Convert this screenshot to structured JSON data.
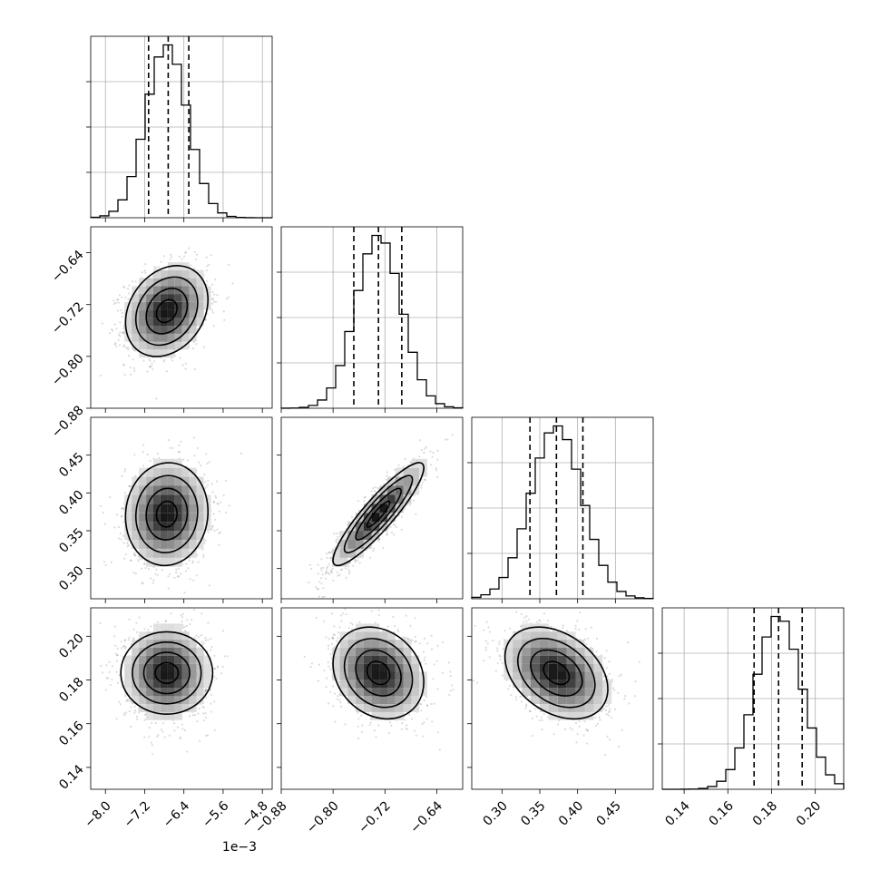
{
  "chart_data": {
    "type": "corner",
    "parameters": [
      {
        "ticks": [
          -0.008,
          -0.0072,
          -0.0064,
          -0.0056,
          -0.0048
        ],
        "tick_labels": [
          "−8.0",
          "−7.2",
          "−6.4",
          "−5.6",
          "−4.8"
        ],
        "offset_label": "1e−3",
        "range": [
          -0.0083,
          -0.0046
        ],
        "mean": -0.00675,
        "sd": 0.00042,
        "quantiles": [
          -0.00712,
          -0.00672,
          -0.0063
        ]
      },
      {
        "ticks": [
          -0.88,
          -0.8,
          -0.72,
          -0.64
        ],
        "tick_labels": [
          "−0.88",
          "−0.80",
          "−0.72",
          "−0.64"
        ],
        "range": [
          -0.88,
          -0.6
        ],
        "mean": -0.73,
        "sd": 0.035,
        "quantiles": [
          -0.768,
          -0.73,
          -0.694
        ]
      },
      {
        "ticks": [
          0.3,
          0.35,
          0.4,
          0.45
        ],
        "tick_labels": [
          "0.30",
          "0.35",
          "0.40",
          "0.45"
        ],
        "range": [
          0.26,
          0.5
        ],
        "mean": 0.372,
        "sd": 0.034,
        "quantiles": [
          0.337,
          0.372,
          0.407
        ]
      },
      {
        "ticks": [
          0.14,
          0.16,
          0.18,
          0.2
        ],
        "tick_labels": [
          "0.14",
          "0.16",
          "0.18",
          "0.20"
        ],
        "range": [
          0.13,
          0.213
        ],
        "mean": 0.1832,
        "sd": 0.0105,
        "quantiles": [
          0.172,
          0.1832,
          0.194
        ]
      }
    ],
    "correlations": [
      [
        1.0,
        0.25,
        0.05,
        0.0
      ],
      [
        0.25,
        1.0,
        0.9,
        -0.2
      ],
      [
        0.05,
        0.9,
        1.0,
        -0.35
      ],
      [
        0.0,
        -0.2,
        -0.35,
        1.0
      ]
    ],
    "histogram_bins": 20,
    "contour_levels": [
      0.118,
      0.393,
      0.675,
      0.865
    ],
    "grid": true,
    "colors": {
      "line": "#000000",
      "grid": "#b0b0b0",
      "points": "#000000"
    }
  }
}
